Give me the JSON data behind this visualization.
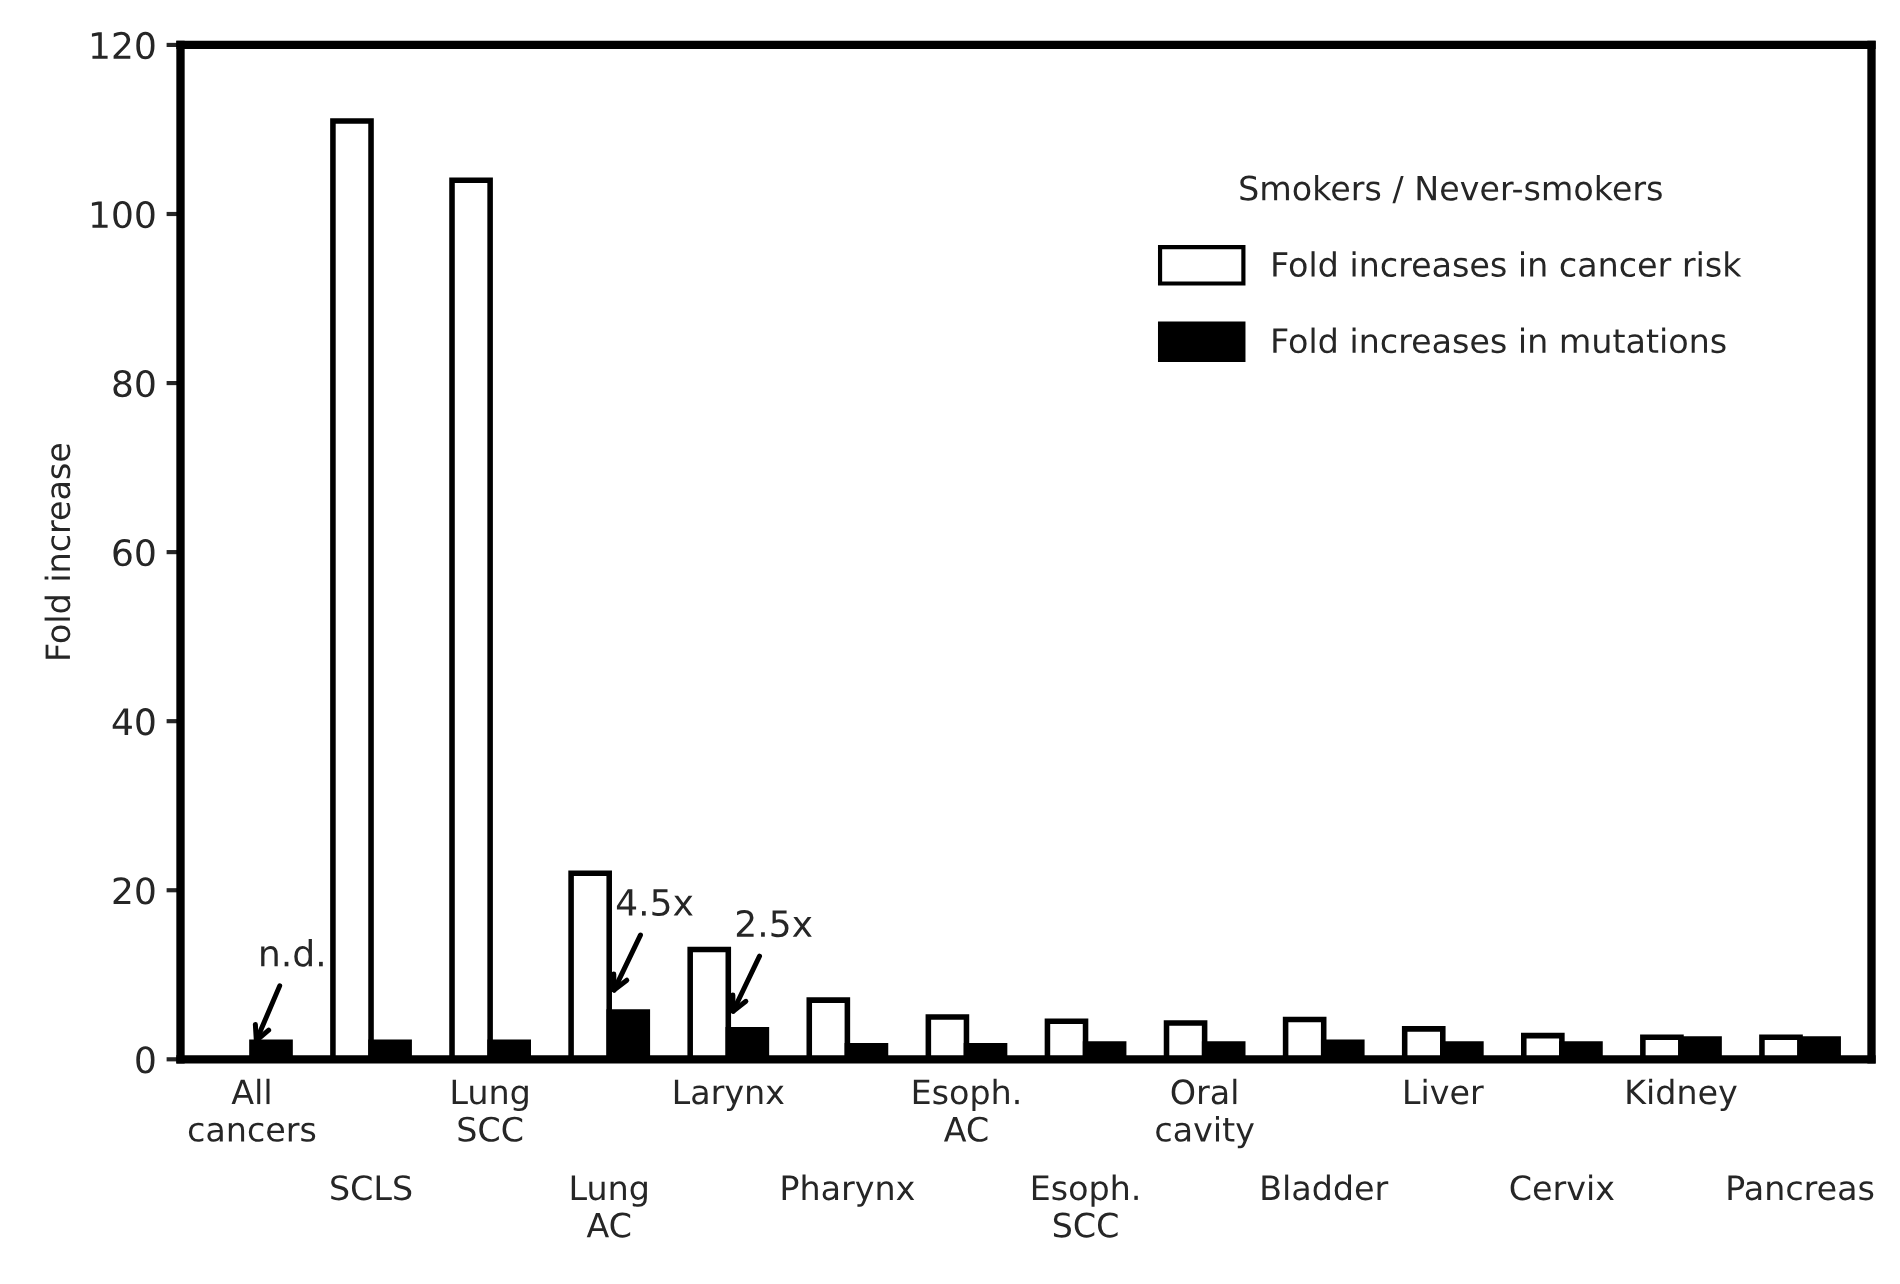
{
  "chart_data": {
    "type": "bar",
    "ylabel": "Fold increase",
    "legend_title": "Smokers / Never-smokers",
    "categories": [
      "All\ncancers",
      "SCLS",
      "Lung\nSCC",
      "Lung\nAC",
      "Larynx",
      "Pharynx",
      "Esoph.\nAC",
      "Esoph.\nSCC",
      "Oral\ncavity",
      "Bladder",
      "Liver",
      "Cervix",
      "Kidney",
      "Pancreas"
    ],
    "series": [
      {
        "name": "Fold increases in cancer risk",
        "color": "#ffffff",
        "values": [
          null,
          111,
          104,
          22,
          13,
          7,
          5,
          4.5,
          4.3,
          4.7,
          3.6,
          2.8,
          2.6,
          2.6
        ]
      },
      {
        "name": "Fold increases in mutations",
        "color": "#000000",
        "values": [
          2,
          2,
          2,
          5.6,
          3.5,
          1.6,
          1.6,
          1.8,
          1.8,
          2,
          1.8,
          1.8,
          2.4,
          2.4
        ]
      }
    ],
    "annotations": [
      {
        "text": "n.d.",
        "x": "All\ncancers",
        "y": 1
      },
      {
        "text": "4.5x",
        "x": "Lung\nAC",
        "y": 7
      },
      {
        "text": "2.5x",
        "x": "Larynx",
        "y": 4.5
      }
    ],
    "ylim": [
      0,
      120
    ],
    "yticks": [
      0,
      20,
      40,
      60,
      80,
      100,
      120
    ],
    "legend": "top right",
    "grid": false
  }
}
